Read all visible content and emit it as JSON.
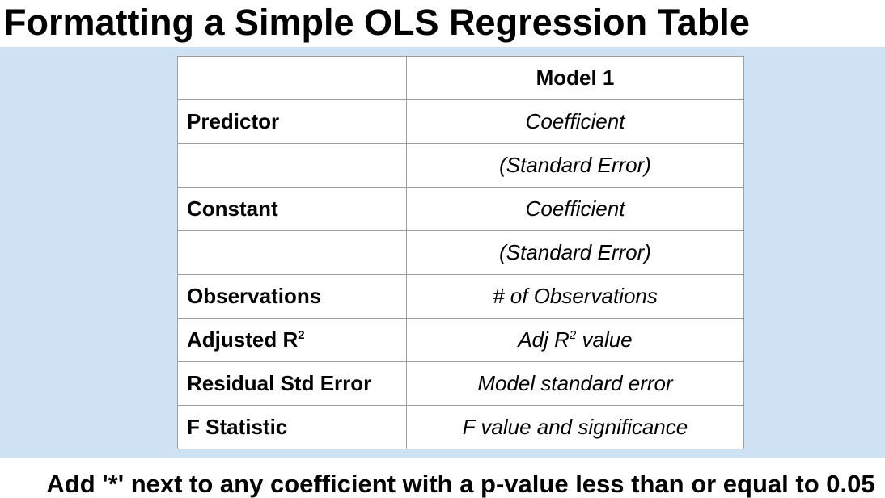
{
  "title": "Formatting a Simple OLS Regression Table",
  "table": {
    "header": {
      "left": "",
      "right": "Model 1"
    },
    "rows": [
      {
        "label": "Predictor",
        "value": "Coefficient"
      },
      {
        "label": "",
        "value": "(Standard Error)"
      },
      {
        "label": "Constant",
        "value": "Coefficient"
      },
      {
        "label": "",
        "value": "(Standard Error)"
      },
      {
        "label": "Observations",
        "value": "# of Observations"
      }
    ],
    "adj_r2": {
      "label": "Adjusted R",
      "label_sup": "2",
      "value_prefix": "Adj R",
      "value_sup": "2",
      "value_suffix": " value"
    },
    "rows_after": [
      {
        "label": "Residual Std Error",
        "value": "Model standard error"
      },
      {
        "label": "F Statistic",
        "value": "F value and significance"
      }
    ]
  },
  "footer": "Add '*' next to any coefficient with a p-value less than or equal to 0.05",
  "colors": {
    "band": "#cfe2f3",
    "table_border": "#9e9e9e"
  }
}
